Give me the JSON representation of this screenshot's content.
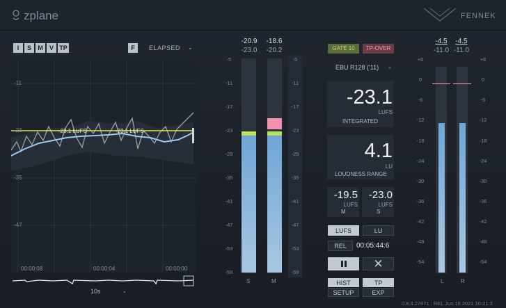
{
  "header": {
    "logo_text": "zplane",
    "brand_name": "FENNEK"
  },
  "history_panel": {
    "modes": [
      "I",
      "S",
      "M",
      "V",
      "TP"
    ],
    "freeze_label": "F",
    "time_mode": "ELAPSED",
    "y_scale": [
      "-11",
      "-23",
      "-35",
      "-47"
    ],
    "target_labels": [
      "-23.1 LUFS",
      "-23.1 LUFS"
    ],
    "time_labels": [
      "00:00:08",
      "00:00:04",
      "00:00:00"
    ],
    "zoom": "10s",
    "colors": {
      "target_line": "#d8e85a",
      "integrated_curve": "#9ecbef",
      "momentary_curve": "#9aa0a8"
    }
  },
  "loudness_meter": {
    "peak_top": [
      "-20.9",
      "-18.6"
    ],
    "peak_sub": [
      "-23.0",
      "-20.2"
    ],
    "scale": [
      "-5",
      "-11",
      "-17",
      "-23",
      "-29",
      "-35",
      "-41",
      "-47",
      "-53",
      "-59"
    ],
    "channels": [
      "S",
      "M"
    ],
    "range_db": [
      -59,
      -5
    ],
    "levels_db": [
      -24.2,
      -24.2
    ],
    "marker_db": [
      -23.0,
      -20.2
    ],
    "colors": {
      "fill": "#7fb2de",
      "marker_green": "#b9e05a",
      "marker_pink": "#ef93b0"
    }
  },
  "readouts": {
    "gate_label": "GATE 10",
    "tp_over_label": "TP-OVER",
    "standard": "EBU R128 ('11)",
    "integrated": {
      "value": "-23.1",
      "unit": "LUFS",
      "caption": "INTEGRATED"
    },
    "range": {
      "value": "4.1",
      "unit": "LU",
      "caption": "LOUDNESS RANGE"
    },
    "momentary": {
      "value": "-19.5",
      "unit": "LUFS",
      "caption": "M"
    },
    "short_term": {
      "value": "-23.0",
      "unit": "LUFS",
      "caption": "S"
    },
    "unit_lufs": "LUFS",
    "unit_lu": "LU",
    "reset_label": "REL",
    "elapsed_time": "00:05:44:6",
    "pause_icon": "pause-icon",
    "close_icon": "close-icon",
    "hist_label": "HIST",
    "tp_label": "TP",
    "setup_label": "SETUP",
    "exp_label": "EXP"
  },
  "true_peak_meter": {
    "peak_top": [
      "-4.5",
      "-4.5"
    ],
    "peak_sub": [
      "-11.0",
      "-11.0"
    ],
    "scale_left": [
      "+6",
      "0",
      "-6",
      "-12",
      "-18",
      "-24",
      "-30",
      "-36",
      "-42",
      "-48",
      "-54"
    ],
    "scale_right": [
      "+6",
      "0",
      "-6",
      "-12",
      "-18",
      "-24",
      "-30",
      "-36",
      "-42",
      "-48",
      "-54"
    ],
    "channels": [
      "L",
      "R"
    ],
    "range_db": [
      -57,
      6
    ],
    "levels_db": [
      -12.8,
      -12.8
    ]
  },
  "footer": {
    "version": "0.8.4.27671 : REL Jun 16 2021 10:21:3"
  }
}
